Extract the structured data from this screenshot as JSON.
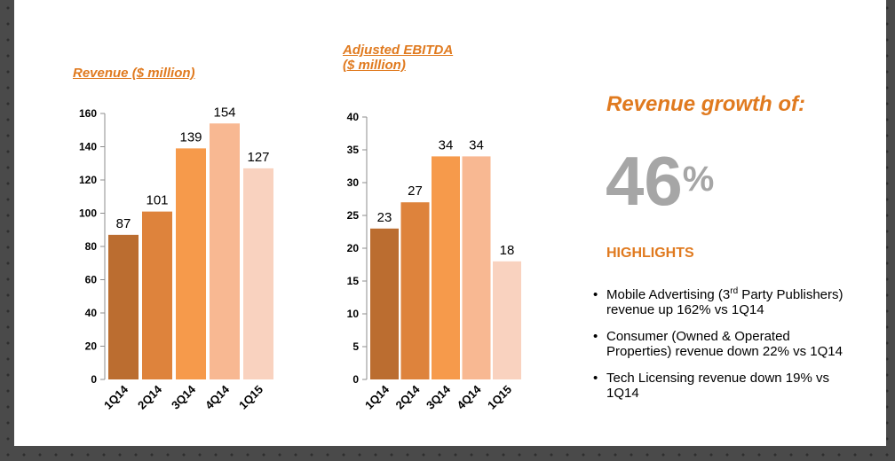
{
  "colors": {
    "accent": "#e07a1f",
    "bars": [
      "#bb6d30",
      "#de833c",
      "#f69a4b",
      "#f8b892",
      "#f9d2bf"
    ]
  },
  "chart_data": [
    {
      "type": "bar",
      "title": "Revenue ($ million)",
      "categories": [
        "1Q14",
        "2Q14",
        "3Q14",
        "4Q14",
        "1Q15"
      ],
      "values": [
        87,
        101,
        139,
        154,
        127
      ],
      "ylim": [
        0,
        160
      ],
      "yticks": [
        0,
        20,
        40,
        60,
        80,
        100,
        120,
        140,
        160
      ]
    },
    {
      "type": "bar",
      "title_line1": "Adjusted EBITDA",
      "title_line2": "($ million)",
      "categories": [
        "1Q14",
        "2Q14",
        "3Q14",
        "4Q14",
        "1Q15"
      ],
      "values": [
        23,
        27,
        34,
        34,
        18
      ],
      "ylim": [
        0,
        40
      ],
      "yticks": [
        0,
        5,
        10,
        15,
        20,
        25,
        30,
        35,
        40
      ]
    }
  ],
  "growth": {
    "heading": "Revenue growth of:",
    "value": "46",
    "unit": "%"
  },
  "highlights": {
    "heading": "HIGHLIGHTS",
    "bullet": "•",
    "item1_pre": "Mobile Advertising (3",
    "item1_sup": "rd",
    "item1_post": " Party Publishers) revenue up 162% vs 1Q14",
    "item2": "Consumer (Owned & Operated Properties) revenue down 22% vs 1Q14",
    "item3": "Tech Licensing revenue down 19% vs 1Q14"
  }
}
